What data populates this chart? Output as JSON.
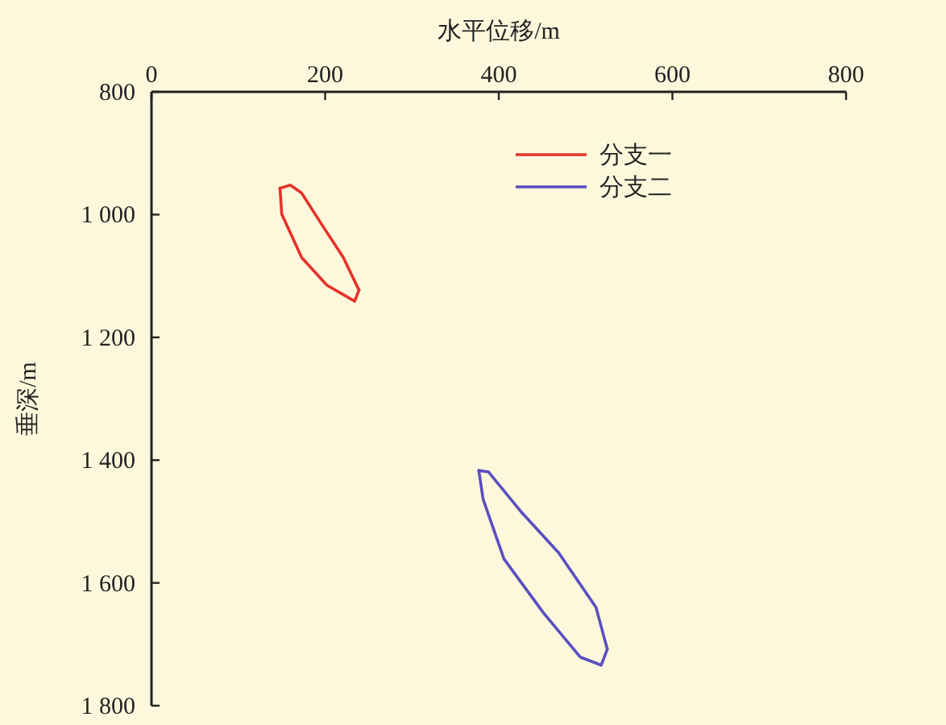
{
  "chart_data": {
    "type": "line",
    "xlabel": "水平位移/m",
    "ylabel": "垂深/m",
    "xlim": [
      0,
      800
    ],
    "xticks": [
      0,
      200,
      400,
      600,
      800
    ],
    "ylim": [
      1800,
      800
    ],
    "yticks": [
      800,
      {
        "value": 1000,
        "label": "1 000"
      },
      {
        "value": 1200,
        "label": "1 200"
      },
      {
        "value": 1400,
        "label": "1 400"
      },
      {
        "value": 1600,
        "label": "1 600"
      },
      {
        "value": 1800,
        "label": "1 800"
      }
    ],
    "grid": false,
    "legend": "top right",
    "marker": "none",
    "line_style": "solid",
    "series": [
      {
        "name": "分支一",
        "color": "#e8312a",
        "x": [
          148,
          150,
          173,
          202,
          234,
          239
        ],
        "values": [
          957,
          999,
          1070,
          1115,
          1141,
          1123
        ]
      },
      {
        "name": "分支二",
        "color": "#5a4fc0",
        "x": [
          377,
          382,
          406,
          451,
          494,
          518,
          525
        ],
        "values": [
          1417,
          1464,
          1561,
          1648,
          1721,
          1734,
          1708
        ]
      },
      {
        "color": "#e8312a",
        "x": [
          148,
          160,
          173,
          197,
          221,
          239
        ],
        "values": [
          957,
          952,
          965,
          1018,
          1070,
          1123
        ]
      },
      {
        "color": "#5a4fc0",
        "x": [
          377,
          388,
          425,
          469,
          512,
          525
        ],
        "values": [
          1417,
          1419,
          1483,
          1551,
          1640,
          1708
        ]
      }
    ]
  }
}
